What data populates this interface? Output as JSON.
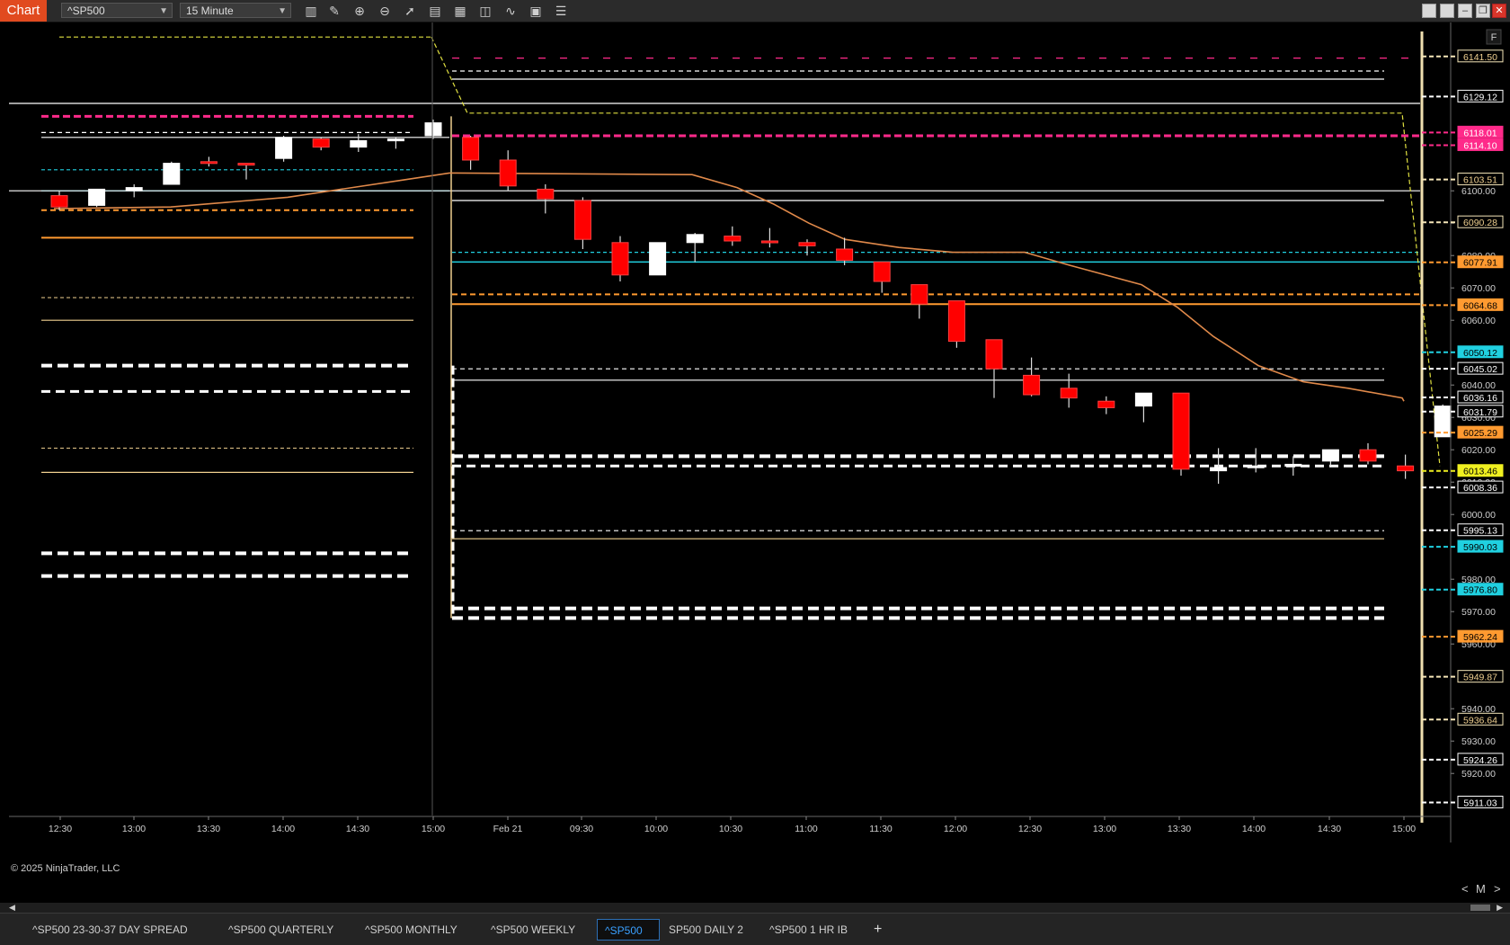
{
  "toolbar": {
    "chart_tab": "Chart",
    "instrument": "^SP500",
    "interval": "15 Minute",
    "icons": [
      "bar-type-icon",
      "draw-pencil-icon",
      "zoom-in-icon",
      "zoom-out-icon",
      "pointer-icon",
      "data-box-icon",
      "properties-icon",
      "indicators-icon",
      "strategies-icon",
      "templates-icon",
      "list-icon"
    ],
    "window_buttons": [
      "tile-icon",
      "tile-icon",
      "minimize-icon",
      "restore-icon",
      "close-icon"
    ]
  },
  "chart": {
    "copyright": "© 2025 NinjaTrader, LLC",
    "flag": "F",
    "colors": {
      "background": "#000000",
      "bull": "#ffffff",
      "bear": "#ff0000",
      "ma": "#e0894a",
      "orange": "#ff9a30",
      "cyan": "#20d0e0",
      "magenta": "#ff2a8a",
      "yellow": "#e0e040",
      "tan": "#f0d090"
    }
  },
  "chart_data": {
    "type": "candlestick",
    "interval": "15 Minute",
    "x_tick_labels": [
      "12:30",
      "13:00",
      "13:30",
      "14:00",
      "14:30",
      "15:00",
      "Feb 21",
      "09:30",
      "10:00",
      "10:30",
      "11:00",
      "11:30",
      "12:00",
      "12:30",
      "13:00",
      "13:30",
      "14:00",
      "14:30",
      "15:00"
    ],
    "y_tick_labels": [
      6100,
      6090,
      6080,
      6070,
      6060,
      6050,
      6040,
      6030,
      6020,
      6010,
      6000,
      5990,
      5980,
      5970,
      5960,
      5950,
      5940,
      5930,
      5920
    ],
    "ylim": [
      5907,
      6152
    ],
    "candles": [
      {
        "o": 6098.5,
        "h": 6100,
        "l": 6094,
        "c": 6095
      },
      {
        "o": 6095.5,
        "h": 6100,
        "l": 6095,
        "c": 6100.5
      },
      {
        "o": 6100,
        "h": 6102,
        "l": 6098,
        "c": 6101
      },
      {
        "o": 6102,
        "h": 6109,
        "l": 6102,
        "c": 6108.5
      },
      {
        "o": 6109,
        "h": 6110.5,
        "l": 6107.5,
        "c": 6108.5
      },
      {
        "o": 6108.5,
        "h": 6108.5,
        "l": 6103.5,
        "c": 6108
      },
      {
        "o": 6110,
        "h": 6117,
        "l": 6109,
        "c": 6116.5
      },
      {
        "o": 6116,
        "h": 6116.5,
        "l": 6112.5,
        "c": 6113.5
      },
      {
        "o": 6113.5,
        "h": 6117.5,
        "l": 6112,
        "c": 6115.5
      },
      {
        "o": 6115.5,
        "h": 6116.5,
        "l": 6113,
        "c": 6116
      },
      {
        "o": 6117,
        "h": 6122,
        "l": 6116,
        "c": 6121
      },
      {
        "o": 6116.5,
        "h": 6117,
        "l": 6106.5,
        "c": 6109.5
      },
      {
        "o": 6109.5,
        "h": 6112.5,
        "l": 6100,
        "c": 6101.5
      },
      {
        "o": 6100.5,
        "h": 6102,
        "l": 6093,
        "c": 6097.5
      },
      {
        "o": 6097,
        "h": 6098,
        "l": 6082,
        "c": 6085
      },
      {
        "o": 6084,
        "h": 6086,
        "l": 6072,
        "c": 6074
      },
      {
        "o": 6074,
        "h": 6084,
        "l": 6074,
        "c": 6084
      },
      {
        "o": 6084,
        "h": 6087,
        "l": 6078,
        "c": 6086.5
      },
      {
        "o": 6086,
        "h": 6089,
        "l": 6083,
        "c": 6084.5
      },
      {
        "o": 6084.5,
        "h": 6088.5,
        "l": 6082.5,
        "c": 6084
      },
      {
        "o": 6084,
        "h": 6085,
        "l": 6080,
        "c": 6083
      },
      {
        "o": 6082,
        "h": 6085.5,
        "l": 6077,
        "c": 6078.5
      },
      {
        "o": 6078,
        "h": 6078,
        "l": 6068.5,
        "c": 6072
      },
      {
        "o": 6071,
        "h": 6071,
        "l": 6060.5,
        "c": 6065
      },
      {
        "o": 6066,
        "h": 6066,
        "l": 6051.5,
        "c": 6053.5
      },
      {
        "o": 6054,
        "h": 6054,
        "l": 6036,
        "c": 6045
      },
      {
        "o": 6043,
        "h": 6048.5,
        "l": 6036.5,
        "c": 6037
      },
      {
        "o": 6039,
        "h": 6043.5,
        "l": 6033,
        "c": 6036
      },
      {
        "o": 6035,
        "h": 6036.5,
        "l": 6031,
        "c": 6033
      },
      {
        "o": 6033.5,
        "h": 6037.5,
        "l": 6028.5,
        "c": 6037.5
      },
      {
        "o": 6037.5,
        "h": 6037.5,
        "l": 6012,
        "c": 6014
      },
      {
        "o": 6013.5,
        "h": 6020.5,
        "l": 6009.5,
        "c": 6014.5
      },
      {
        "o": 6015,
        "h": 6020.5,
        "l": 6013,
        "c": 6015
      },
      {
        "o": 6015,
        "h": 6018,
        "l": 6012,
        "c": 6015.5
      },
      {
        "o": 6016.5,
        "h": 6019,
        "l": 6015,
        "c": 6020
      },
      {
        "o": 6020,
        "h": 6022,
        "l": 6015.5,
        "c": 6016.5
      },
      {
        "o": 6015,
        "h": 6018.5,
        "l": 6011,
        "c": 6013.5
      },
      {
        "o": 6024,
        "h": 6034,
        "l": 6024,
        "c": 6033.5
      }
    ],
    "price_labels": [
      {
        "label": "6141.50",
        "style": "tag-tan"
      },
      {
        "label": "6129.12",
        "style": "tag-white"
      },
      {
        "label": "6118.01",
        "style": "tag-magenta"
      },
      {
        "label": "6114.10",
        "style": "tag-magenta"
      },
      {
        "label": "6103.51",
        "style": "tag-tan"
      },
      {
        "label": "6090.28",
        "style": "tag-tan"
      },
      {
        "label": "6077.91",
        "style": "tag-orange"
      },
      {
        "label": "6064.68",
        "style": "tag-orange"
      },
      {
        "label": "6050.12",
        "style": "tag-cyan"
      },
      {
        "label": "6045.02",
        "style": "tag-white"
      },
      {
        "label": "6036.16",
        "style": "tag-white"
      },
      {
        "label": "6031.79",
        "style": "tag-white"
      },
      {
        "label": "6025.29",
        "style": "tag-orange"
      },
      {
        "label": "6013.46",
        "style": "tag-yellow"
      },
      {
        "label": "6008.36",
        "style": "tag-white"
      },
      {
        "label": "5995.13",
        "style": "tag-white"
      },
      {
        "label": "5990.03",
        "style": "tag-cyan"
      },
      {
        "label": "5976.80",
        "style": "tag-cyan"
      },
      {
        "label": "5962.24",
        "style": "tag-orange"
      },
      {
        "label": "5949.87",
        "style": "tag-tan"
      },
      {
        "label": "5936.64",
        "style": "tag-tan"
      },
      {
        "label": "5924.26",
        "style": "tag-white"
      },
      {
        "label": "5911.03",
        "style": "tag-white"
      }
    ]
  },
  "bottom_tabs": [
    {
      "label": "^SP500 23-30-37 DAY SPREAD",
      "active": false
    },
    {
      "label": "^SP500 QUARTERLY",
      "active": false
    },
    {
      "label": "^SP500 MONTHLY",
      "active": false
    },
    {
      "label": "^SP500 WEEKLY",
      "active": false
    },
    {
      "label": "^SP500",
      "active": true
    },
    {
      "label": "SP500 DAILY 2",
      "active": false
    },
    {
      "label": "^SP500 1 HR IB",
      "active": false
    }
  ],
  "add_tab": "+",
  "nav": {
    "prev": "<",
    "mode": "M",
    "next": ">"
  }
}
